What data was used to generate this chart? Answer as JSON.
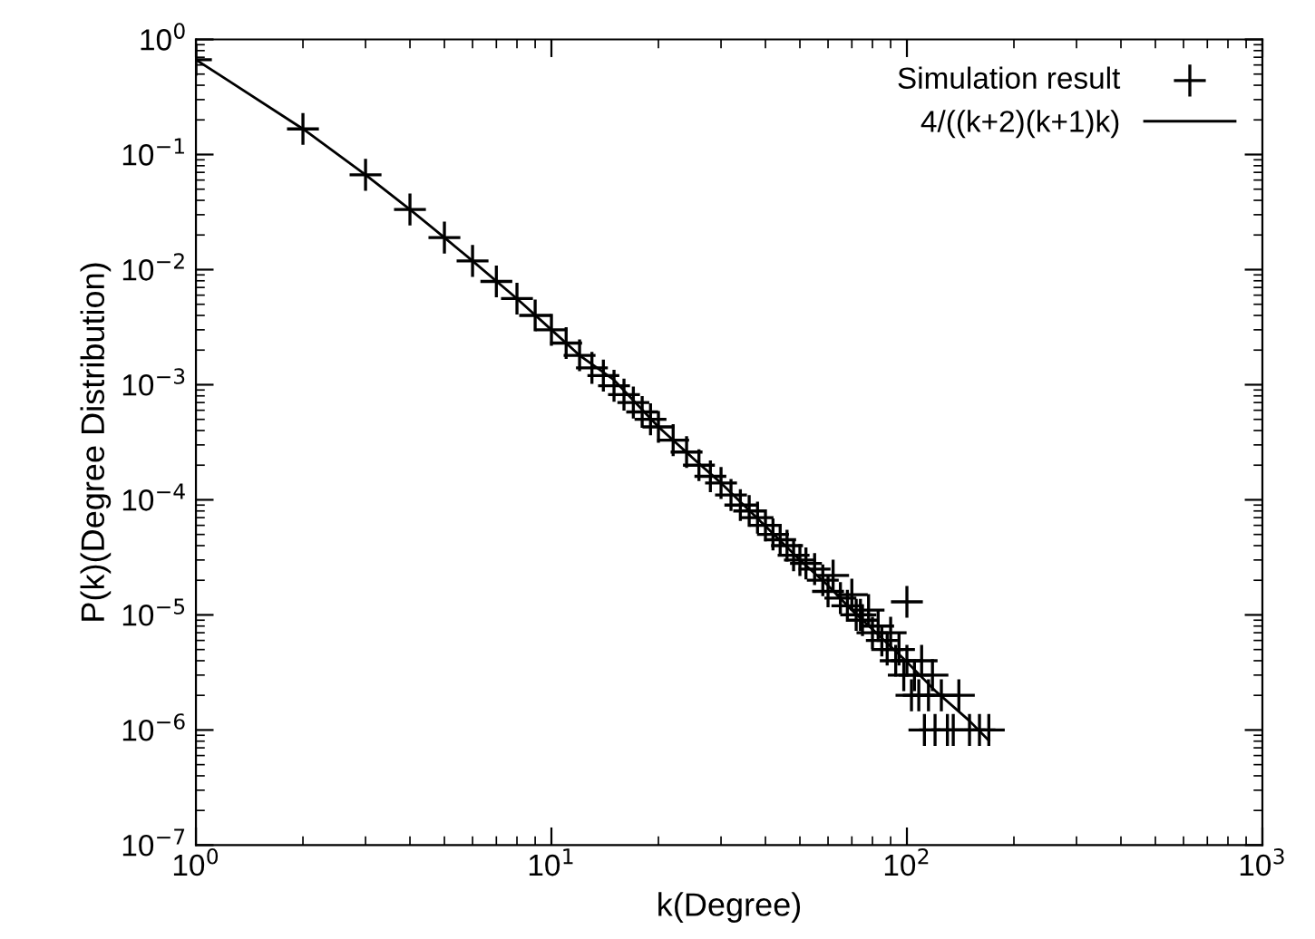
{
  "chart_data": {
    "type": "scatter",
    "xlabel": "k(Degree)",
    "ylabel": "P(k)(Degree Distribution)",
    "log": "xy",
    "grid": false,
    "legend": "top right",
    "xlim": [
      1,
      1000
    ],
    "ylim": [
      1e-07,
      1
    ],
    "xticks": [
      {
        "value": 1,
        "label": "10$^{0}$"
      },
      {
        "value": 10,
        "label": "10$^{1}$"
      },
      {
        "value": 100,
        "label": "10$^{2}$"
      },
      {
        "value": 1000,
        "label": "10$^{3}$"
      }
    ],
    "yticks": [
      {
        "value": 1e-07,
        "label": "10$^{−7}$"
      },
      {
        "value": 1e-06,
        "label": "10$^{−6}$"
      },
      {
        "value": 1e-05,
        "label": "10$^{−5}$"
      },
      {
        "value": 0.0001,
        "label": "10$^{−4}$"
      },
      {
        "value": 0.001,
        "label": "10$^{−3}$"
      },
      {
        "value": 0.01,
        "label": "10$^{−2}$"
      },
      {
        "value": 0.1,
        "label": "10$^{−1}$"
      },
      {
        "value": 1,
        "label": "10$^{0}$"
      }
    ],
    "series": [
      {
        "name": "Simulation result",
        "marker": "cross",
        "color": "#000000",
        "x": [
          1,
          2,
          3,
          4,
          5,
          6,
          7,
          8,
          9,
          10,
          11,
          12,
          13,
          14,
          15,
          16,
          17,
          18,
          19,
          20,
          22,
          24,
          26,
          28,
          30,
          32,
          34,
          36,
          38,
          40,
          42,
          44,
          46,
          48,
          50,
          52,
          55,
          58,
          60,
          62,
          65,
          68,
          70,
          72,
          74,
          75,
          78,
          80,
          83,
          85,
          88,
          90,
          93,
          95,
          98,
          100,
          100,
          103,
          105,
          108,
          110,
          112,
          115,
          118,
          120,
          125,
          130,
          135,
          140,
          150,
          160,
          170
        ],
        "values": [
          0.667,
          0.167,
          0.0667,
          0.0333,
          0.019,
          0.0119,
          0.0079,
          0.0056,
          0.004,
          0.003,
          0.0023,
          0.0018,
          0.0014,
          0.0012,
          0.00098,
          0.00082,
          0.0007,
          0.00058,
          0.0005,
          0.00043,
          0.00033,
          0.00026,
          0.0002,
          0.00016,
          0.00014,
          0.00011,
          9e-05,
          8e-05,
          7e-05,
          6e-05,
          5e-05,
          4.5e-05,
          4e-05,
          3.3e-05,
          3e-05,
          2.8e-05,
          2.5e-05,
          2e-05,
          1.6e-05,
          2.2e-05,
          1.4e-05,
          1.2e-05,
          1.5e-05,
          1e-05,
          1e-05,
          9e-06,
          1.1e-05,
          7e-06,
          8e-06,
          6e-06,
          5e-06,
          7e-06,
          4e-06,
          5e-06,
          3e-06,
          1.3e-05,
          4e-06,
          2e-06,
          3e-06,
          2e-06,
          4e-06,
          1e-06,
          2e-06,
          3e-06,
          1e-06,
          2e-06,
          1e-06,
          1e-06,
          2e-06,
          1e-06,
          1e-06,
          1e-06
        ]
      },
      {
        "name": "4/((k+2)(k+1)k)",
        "type": "line",
        "marker": "none",
        "line_style": "solid",
        "color": "#000000",
        "x": [
          1,
          2,
          3,
          4,
          5,
          6,
          8,
          10,
          12,
          15,
          20,
          25,
          30,
          40,
          50,
          60,
          70,
          80,
          100,
          120,
          150,
          170
        ],
        "values": [
          0.667,
          0.167,
          0.0667,
          0.0333,
          0.019,
          0.0119,
          0.0056,
          0.003,
          0.0018,
          0.0011,
          0.00043,
          0.00023,
          0.00014,
          5.9e-05,
          3e-05,
          1.8e-05,
          1.1e-05,
          7.5e-06,
          3.9e-06,
          2.2e-06,
          1.2e-06,
          8.1e-07
        ]
      }
    ]
  }
}
